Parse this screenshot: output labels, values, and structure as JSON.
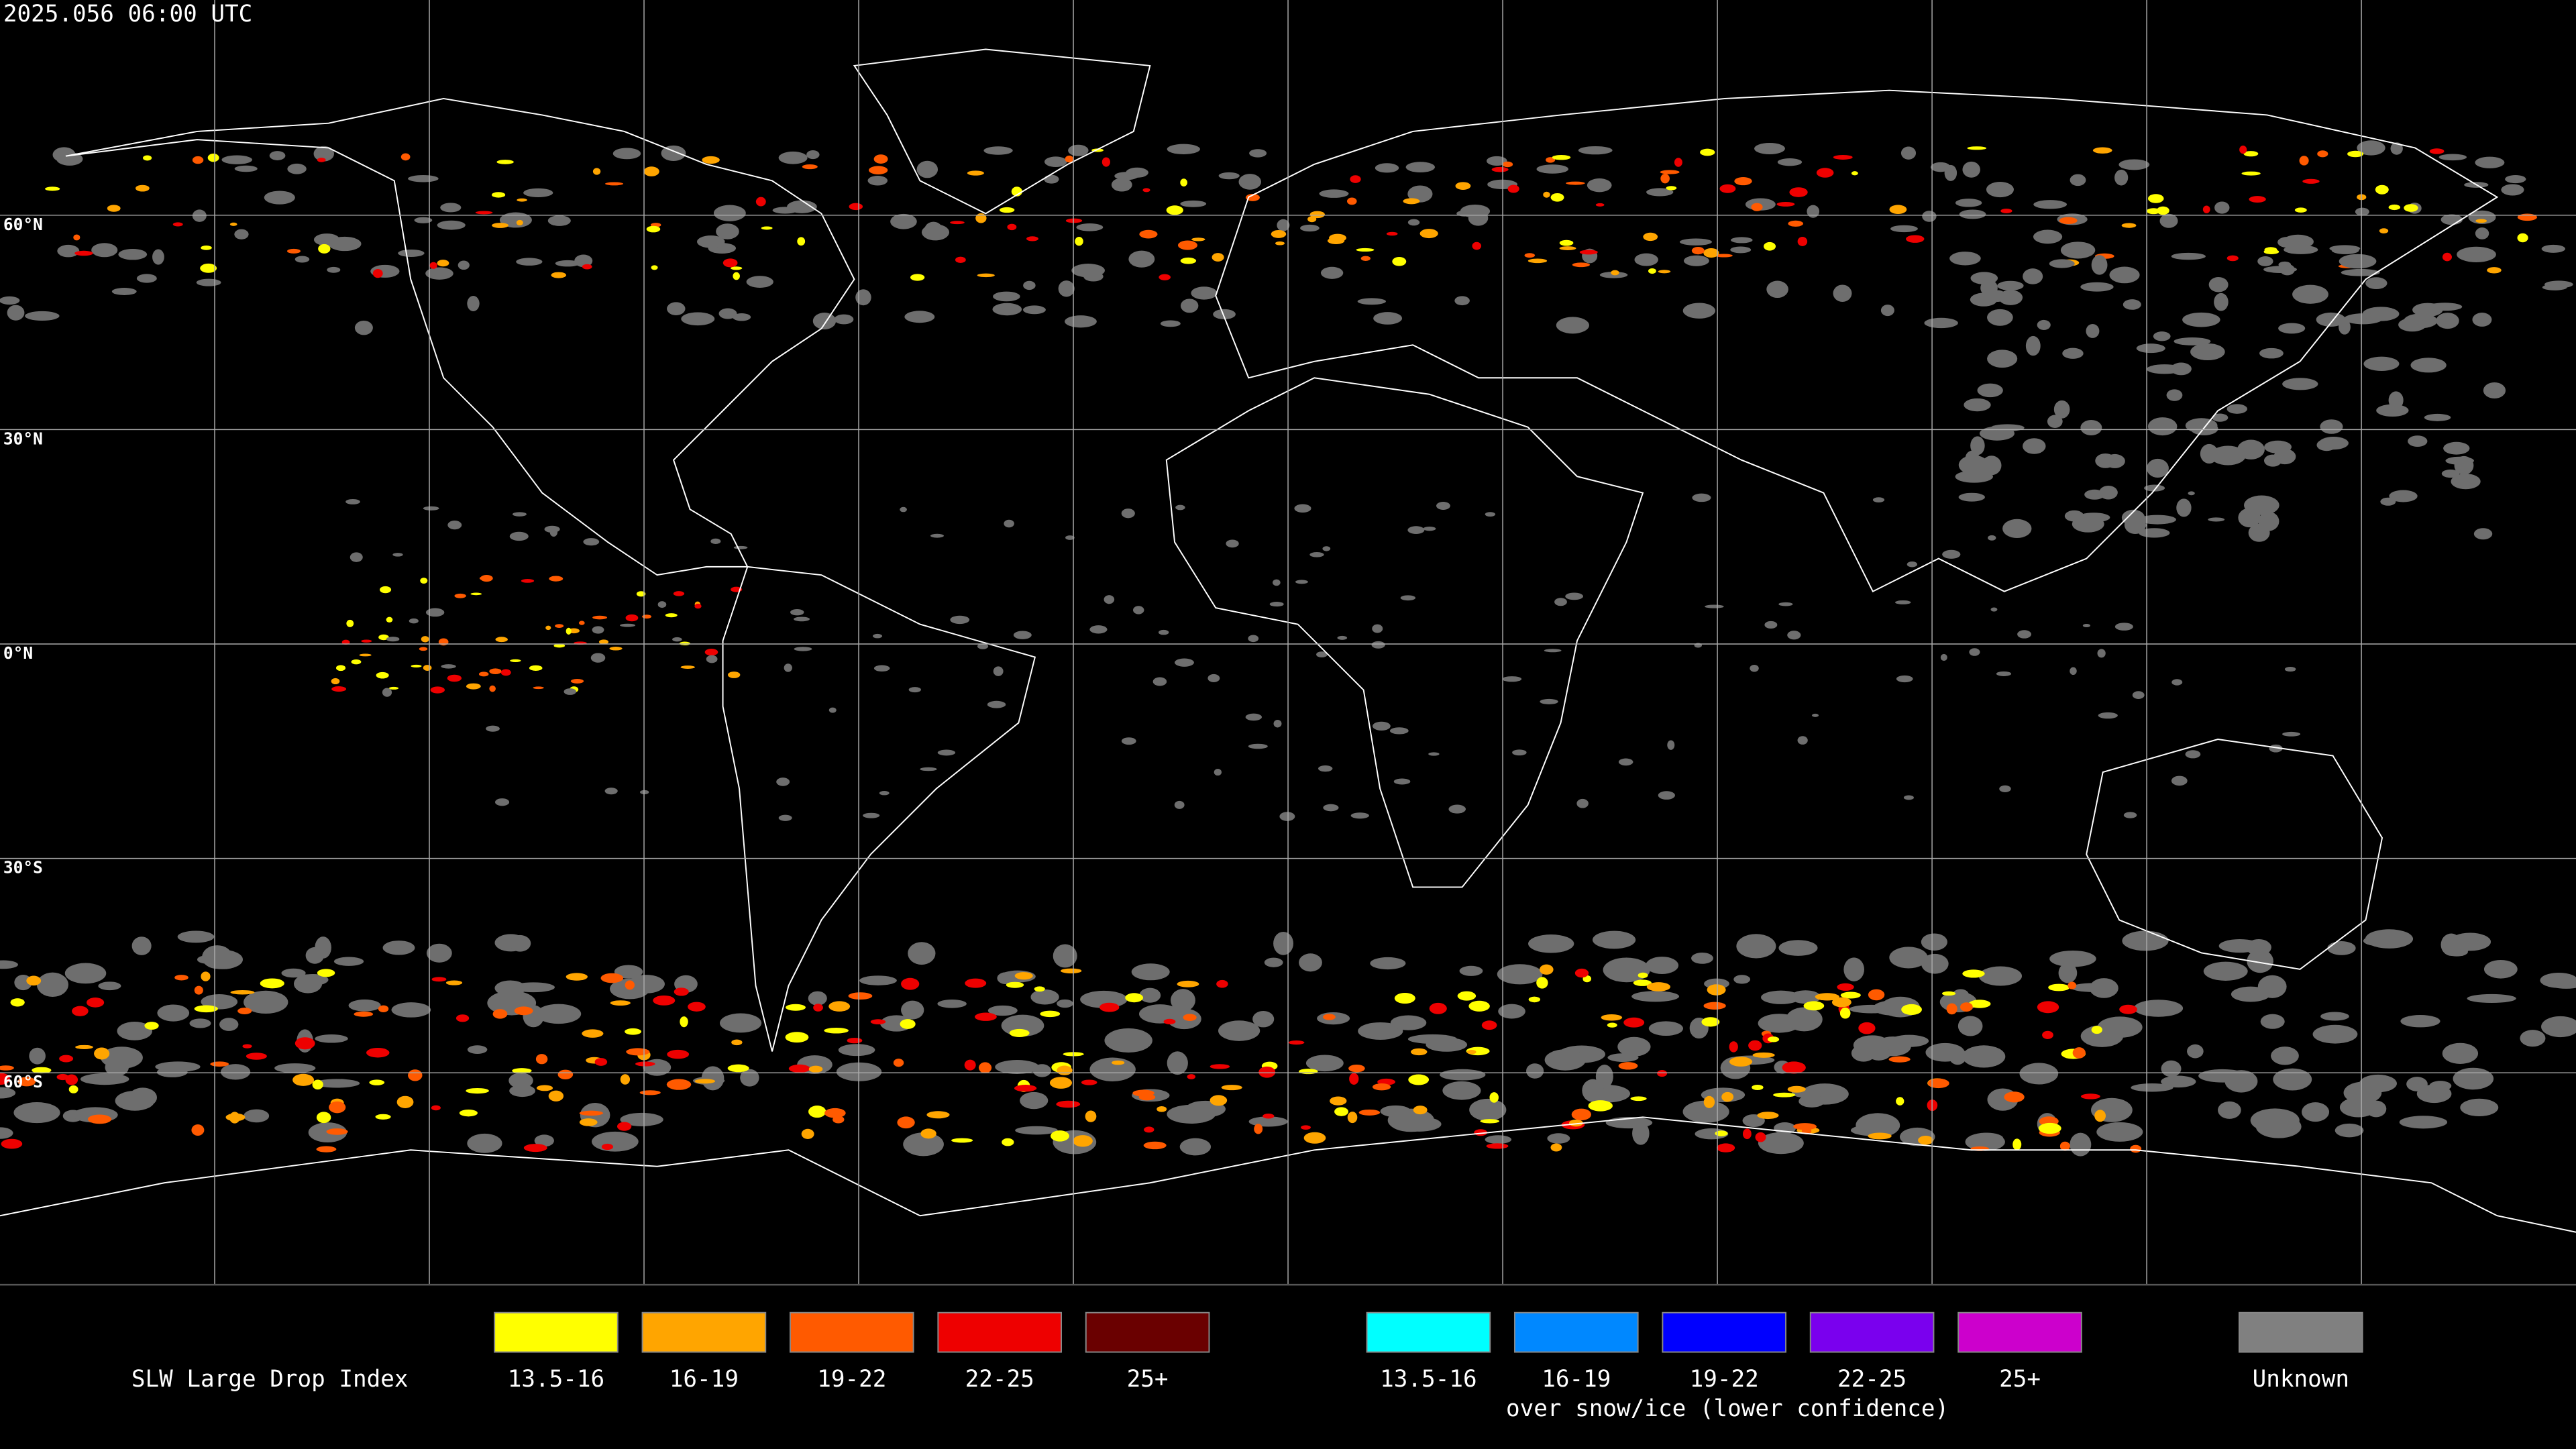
{
  "header": {
    "timestamp": "2025.056 06:00 UTC"
  },
  "map": {
    "lat_labels": [
      "60°N",
      "30°N",
      "0°N",
      "30°S",
      "60°S"
    ]
  },
  "legend": {
    "title": "SLW Large Drop Index",
    "groups": [
      {
        "items": [
          {
            "label": "13.5-16",
            "color": "#ffff00"
          },
          {
            "label": "16-19",
            "color": "#ffa500"
          },
          {
            "label": "19-22",
            "color": "#ff5a00"
          },
          {
            "label": "22-25",
            "color": "#ee0000"
          },
          {
            "label": "25+",
            "color": "#6a0000"
          }
        ]
      },
      {
        "items": [
          {
            "label": "13.5-16",
            "color": "#00ffff"
          },
          {
            "label": "16-19",
            "color": "#0088ff"
          },
          {
            "label": "19-22",
            "color": "#0000ff"
          },
          {
            "label": "22-25",
            "color": "#7a00ee"
          },
          {
            "label": "25+",
            "color": "#cc00cc"
          }
        ],
        "caption": "over snow/ice (lower confidence)"
      },
      {
        "items": [
          {
            "label": "Unknown",
            "color": "#808080"
          }
        ]
      }
    ]
  }
}
